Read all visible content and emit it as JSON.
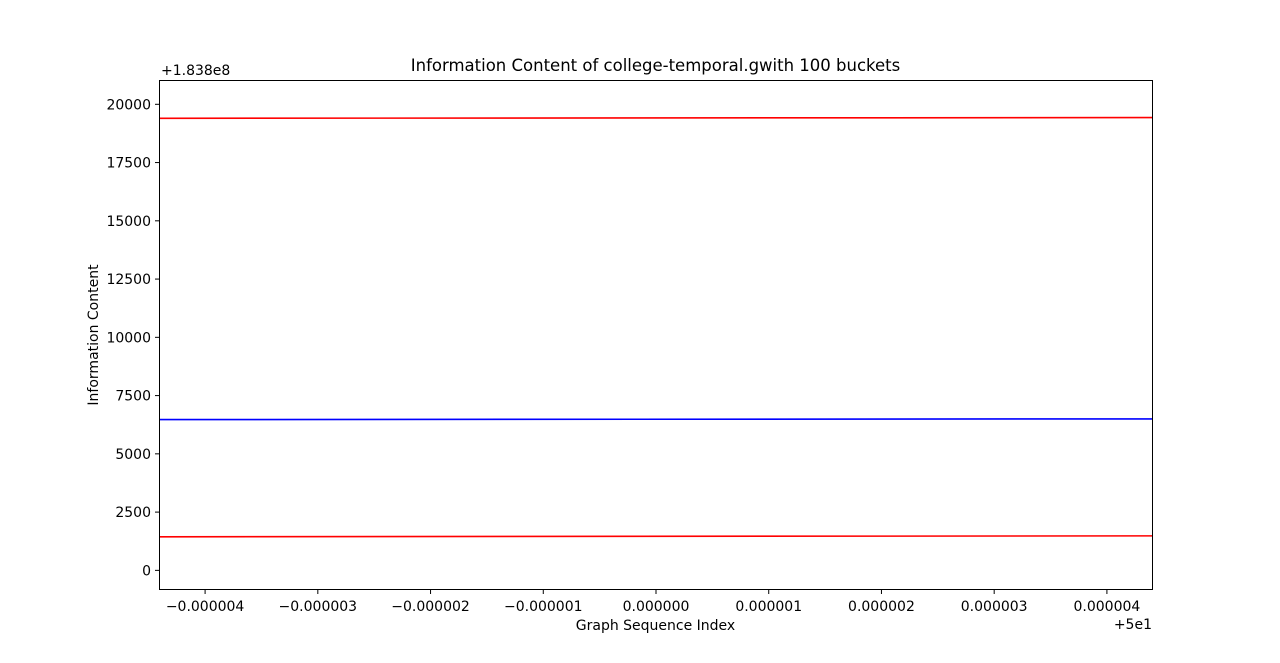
{
  "chart_data": {
    "type": "line",
    "title": "Information Content of college-temporal.gwith 100 buckets",
    "xlabel": "Graph Sequence Index",
    "ylabel": "Information Content",
    "x_offset_label": "+5e1",
    "y_offset_label": "+1.838e8",
    "x_offset": 50,
    "y_offset": 183800000,
    "xlim": [
      -4.4e-06,
      4.4e-06
    ],
    "ylim": [
      -800,
      21000
    ],
    "grid": false,
    "legend": "none",
    "x_ticks": [
      -4e-06,
      -3e-06,
      -2e-06,
      -1e-06,
      0,
      1e-06,
      2e-06,
      3e-06,
      4e-06
    ],
    "x_tick_labels": [
      "−0.000004",
      "−0.000003",
      "−0.000002",
      "−0.000001",
      "0.000000",
      "0.000001",
      "0.000002",
      "0.000003",
      "0.000004"
    ],
    "y_ticks": [
      0,
      2500,
      5000,
      7500,
      10000,
      12500,
      15000,
      17500,
      20000
    ],
    "y_tick_labels": [
      "0",
      "2500",
      "5000",
      "7500",
      "10000",
      "12500",
      "15000",
      "17500",
      "20000"
    ],
    "series": [
      {
        "color": "#ff0000",
        "x": [
          -4.4e-06,
          4.4e-06
        ],
        "y": [
          19400,
          19430
        ]
      },
      {
        "color": "#0000ff",
        "x": [
          -4.4e-06,
          4.4e-06
        ],
        "y": [
          6470,
          6500
        ]
      },
      {
        "color": "#ff0000",
        "x": [
          -4.4e-06,
          4.4e-06
        ],
        "y": [
          1440,
          1480
        ]
      }
    ]
  }
}
